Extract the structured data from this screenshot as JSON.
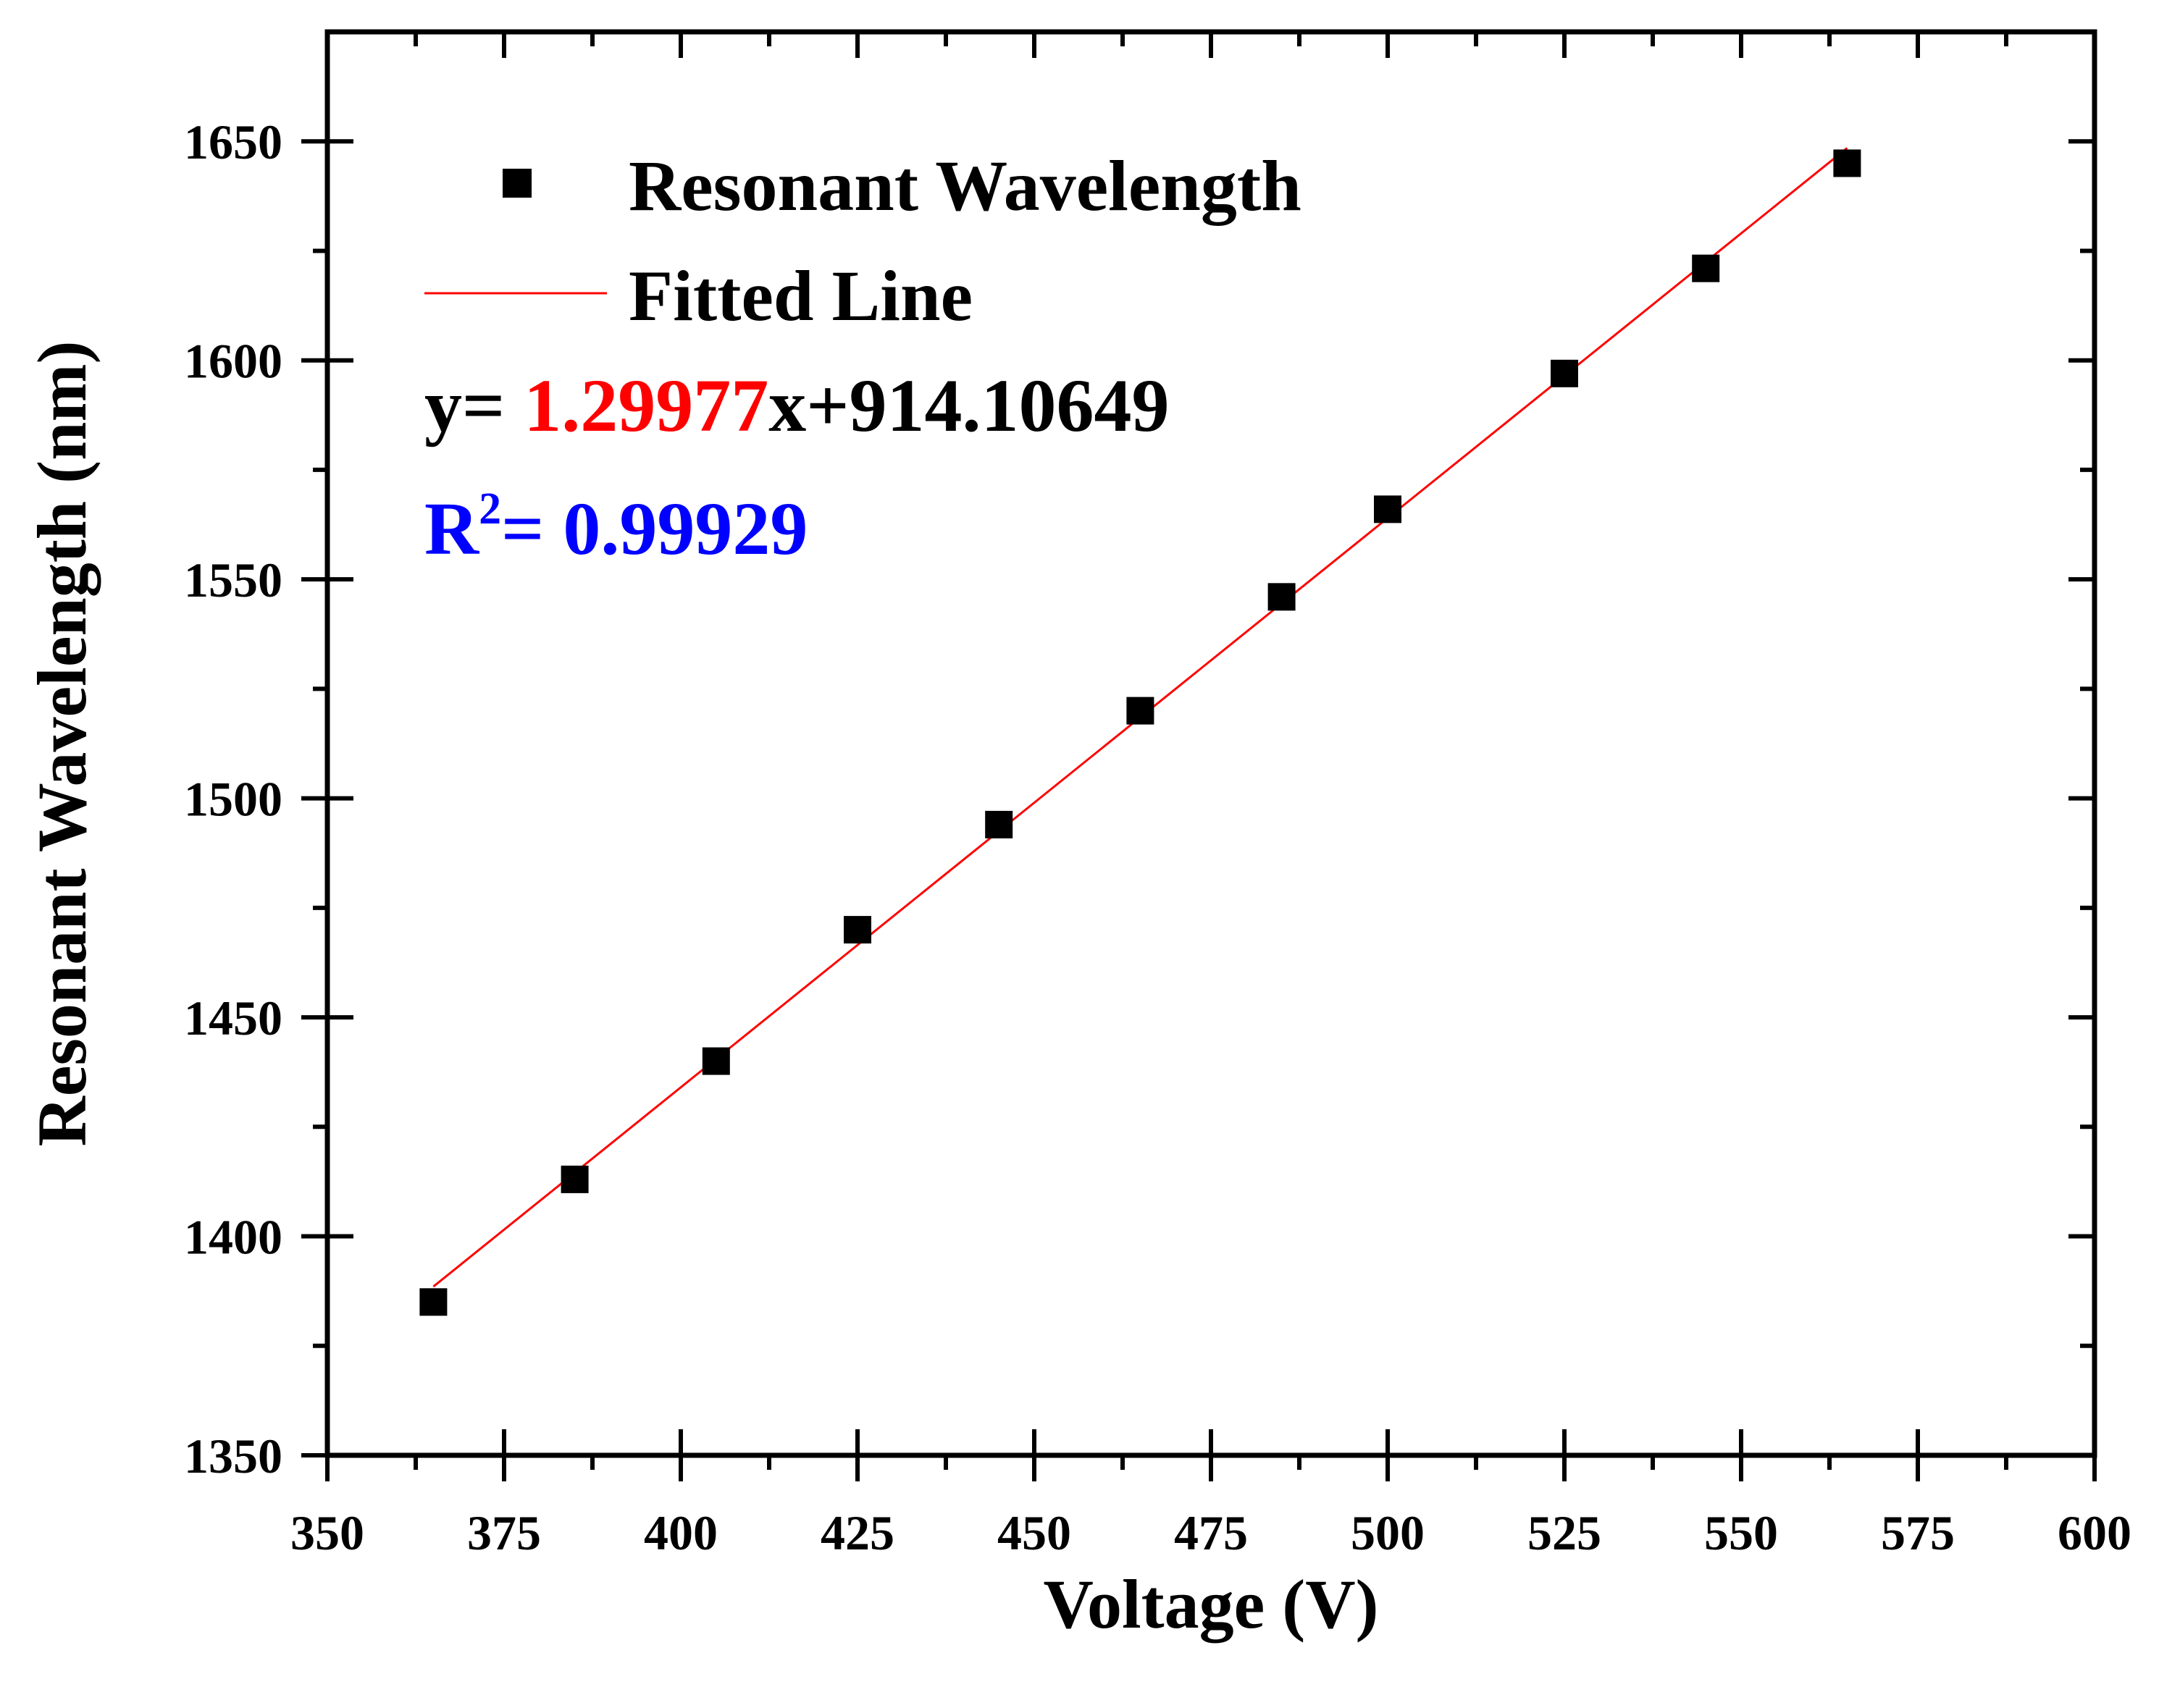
{
  "chart_data": {
    "type": "scatter",
    "title": "",
    "xlabel": "Voltage (V)",
    "ylabel": "Resonant Wavelength (nm)",
    "xlim": [
      350,
      600
    ],
    "ylim": [
      1350,
      1675
    ],
    "x_major_ticks": [
      350,
      375,
      400,
      425,
      450,
      475,
      500,
      525,
      550,
      575,
      600
    ],
    "x_minor_ticks": [
      362.5,
      387.5,
      412.5,
      437.5,
      462.5,
      487.5,
      512.5,
      537.5,
      562.5,
      587.5
    ],
    "y_major_ticks": [
      1350,
      1400,
      1450,
      1500,
      1550,
      1600,
      1650
    ],
    "y_minor_ticks": [
      1375,
      1425,
      1475,
      1525,
      1575,
      1625
    ],
    "x_tick_labels": [
      "350",
      "375",
      "400",
      "425",
      "450",
      "475",
      "500",
      "525",
      "550",
      "575",
      "600"
    ],
    "y_tick_labels": [
      "1350",
      "1400",
      "1450",
      "1500",
      "1550",
      "1600",
      "1650"
    ],
    "grid": false,
    "series": [
      {
        "name": "Resonant Wavelength",
        "kind": "scatter",
        "marker": "square",
        "color": "#000000",
        "x": [
          365,
          385,
          405,
          425,
          445,
          465,
          485,
          500,
          525,
          545,
          565
        ],
        "y": [
          1385,
          1413,
          1440,
          1470,
          1494,
          1520,
          1546,
          1566,
          1597,
          1621,
          1645
        ]
      },
      {
        "name": "Fitted Line",
        "kind": "line",
        "color": "#ff0000",
        "slope": 1.29977,
        "intercept": 914.10649,
        "x_range": [
          365,
          565
        ]
      }
    ],
    "legend": {
      "position": "top-left",
      "entries": [
        "Resonant Wavelength",
        "Fitted Line"
      ]
    },
    "annotations": {
      "equation_prefix": "y= ",
      "equation_slope": "1.29977",
      "equation_suffix": "x+914.10649",
      "slope_color": "#ff0000",
      "r2_label": "R",
      "r2_superscript": "2",
      "r2_value": "= 0.99929",
      "r2_color": "#0000ff"
    }
  }
}
